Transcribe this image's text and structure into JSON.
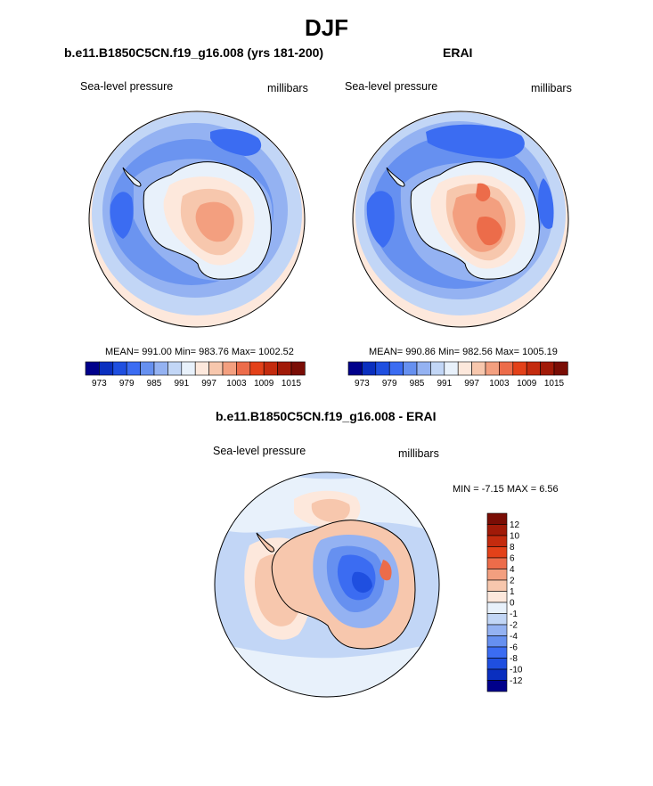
{
  "season": "DJF",
  "colors": {
    "levels": [
      "#00008b",
      "#0a2fbf",
      "#1f4fe0",
      "#3b6cf2",
      "#6690f0",
      "#94b2f2",
      "#c2d6f6",
      "#e8f1fb",
      "#fde8dc",
      "#f7c7ad",
      "#f39f7f",
      "#ec6c4a",
      "#e34119",
      "#c42b0e",
      "#a11a08",
      "#7a0d05"
    ]
  },
  "chart_data": [
    {
      "type": "polar-contour-map",
      "title": "b.e11.B1850C5CN.f19_g16.008 (yrs 181-200)",
      "left_label": "Sea-level pressure",
      "right_label": "millibars",
      "stats_text": "MEAN= 991.00  Min= 983.76  Max= 1002.52",
      "mean": 991.0,
      "min": 983.76,
      "max": 1002.52,
      "colorbar_ticks": [
        "973",
        "979",
        "985",
        "991",
        "997",
        "1003",
        "1009",
        "1015"
      ],
      "contour_levels": [
        970,
        973,
        976,
        979,
        982,
        985,
        988,
        991,
        994,
        997,
        1000,
        1003,
        1006,
        1009,
        1012,
        1015
      ]
    },
    {
      "type": "polar-contour-map",
      "title": "ERAI",
      "left_label": "Sea-level pressure",
      "right_label": "millibars",
      "stats_text": "MEAN= 990.86  Min= 982.56  Max= 1005.19",
      "mean": 990.86,
      "min": 982.56,
      "max": 1005.19,
      "colorbar_ticks": [
        "973",
        "979",
        "985",
        "991",
        "997",
        "1003",
        "1009",
        "1015"
      ],
      "contour_levels": [
        970,
        973,
        976,
        979,
        982,
        985,
        988,
        991,
        994,
        997,
        1000,
        1003,
        1006,
        1009,
        1012,
        1015
      ]
    },
    {
      "type": "polar-contour-map",
      "title": "b.e11.B1850C5CN.f19_g16.008 - ERAI",
      "left_label": "Sea-level pressure",
      "right_label": "millibars",
      "stats_text": "MIN =  -7.15 MAX =   6.56",
      "min": -7.15,
      "max": 6.56,
      "colorbar_ticks": [
        "12",
        "10",
        "8",
        "6",
        "4",
        "2",
        "1",
        "0",
        "-1",
        "-2",
        "-4",
        "-6",
        "-8",
        "-10",
        "-12"
      ],
      "contour_levels": [
        -12,
        -10,
        -8,
        -6,
        -4,
        -2,
        -1,
        0,
        1,
        2,
        4,
        6,
        8,
        10,
        12
      ]
    }
  ]
}
